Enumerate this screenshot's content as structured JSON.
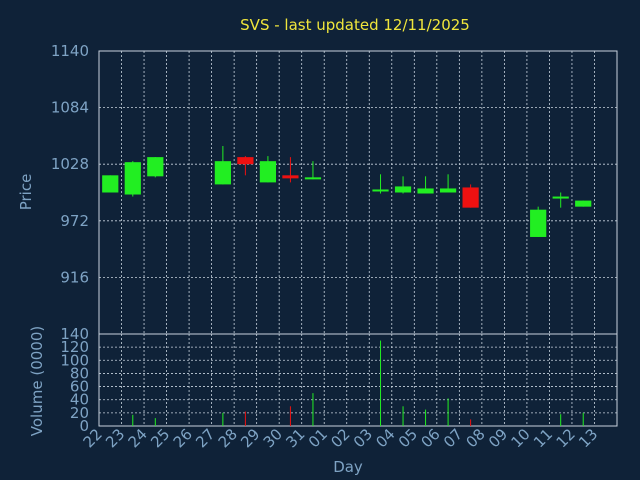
{
  "title": "SVS - last updated 12/11/2025",
  "chart_data": [
    {
      "type": "candlestick",
      "ylabel": "Price",
      "ylim": [
        860,
        1140
      ],
      "yticks": [
        916,
        972,
        1028,
        1084,
        1140
      ],
      "x": [
        "22",
        "23",
        "24",
        "25",
        "26",
        "27",
        "28",
        "29",
        "30",
        "31",
        "01",
        "02",
        "03",
        "04",
        "05",
        "06",
        "07",
        "08",
        "09",
        "10",
        "11",
        "12",
        "13"
      ],
      "candles": [
        {
          "day": "22",
          "open": 1000,
          "close": 1017,
          "high": 1017,
          "low": 1000
        },
        {
          "day": "23",
          "open": 998,
          "close": 1030,
          "high": 1031,
          "low": 996
        },
        {
          "day": "24",
          "open": 1016,
          "close": 1035,
          "high": 1035,
          "low": 1015
        },
        {
          "day": "27",
          "open": 1008,
          "close": 1031,
          "high": 1046,
          "low": 1008
        },
        {
          "day": "28",
          "open": 1035,
          "close": 1028,
          "high": 1036,
          "low": 1017
        },
        {
          "day": "29",
          "open": 1010,
          "close": 1031,
          "high": 1036,
          "low": 1010
        },
        {
          "day": "30",
          "open": 1017,
          "close": 1014,
          "high": 1035,
          "low": 1010
        },
        {
          "day": "31",
          "open": 1013,
          "close": 1015,
          "high": 1031,
          "low": 1013
        },
        {
          "day": "03",
          "open": 1001,
          "close": 1003,
          "high": 1018,
          "low": 999
        },
        {
          "day": "04",
          "open": 1000,
          "close": 1006,
          "high": 1016,
          "low": 999
        },
        {
          "day": "05",
          "open": 999,
          "close": 1004,
          "high": 1016,
          "low": 999
        },
        {
          "day": "06",
          "open": 1000,
          "close": 1004,
          "high": 1018,
          "low": 1000
        },
        {
          "day": "07",
          "open": 1005,
          "close": 985,
          "high": 1008,
          "low": 985
        },
        {
          "day": "10",
          "open": 956,
          "close": 983,
          "high": 986,
          "low": 956
        },
        {
          "day": "11",
          "open": 994,
          "close": 996,
          "high": 1000,
          "low": 985
        },
        {
          "day": "12",
          "open": 986,
          "close": 992,
          "high": 992,
          "low": 986
        }
      ]
    },
    {
      "type": "bar",
      "ylabel": "Volume (0000)",
      "ylim": [
        0,
        140
      ],
      "yticks": [
        0,
        20,
        40,
        60,
        80,
        100,
        120,
        140
      ],
      "x": [
        "22",
        "23",
        "24",
        "25",
        "26",
        "27",
        "28",
        "29",
        "30",
        "31",
        "01",
        "02",
        "03",
        "04",
        "05",
        "06",
        "07",
        "08",
        "09",
        "10",
        "11",
        "12",
        "13"
      ],
      "xlabel": "Day",
      "volumes": [
        {
          "day": "22",
          "value": 0,
          "up": true
        },
        {
          "day": "23",
          "value": 17,
          "up": true
        },
        {
          "day": "24",
          "value": 12,
          "up": true
        },
        {
          "day": "27",
          "value": 20,
          "up": true
        },
        {
          "day": "28",
          "value": 22,
          "up": false
        },
        {
          "day": "29",
          "value": 0,
          "up": true
        },
        {
          "day": "30",
          "value": 30,
          "up": false
        },
        {
          "day": "31",
          "value": 50,
          "up": true
        },
        {
          "day": "03",
          "value": 130,
          "up": true
        },
        {
          "day": "04",
          "value": 30,
          "up": true
        },
        {
          "day": "05",
          "value": 25,
          "up": true
        },
        {
          "day": "06",
          "value": 42,
          "up": true
        },
        {
          "day": "07",
          "value": 10,
          "up": false
        },
        {
          "day": "10",
          "value": 0,
          "up": true
        },
        {
          "day": "11",
          "value": 18,
          "up": true
        },
        {
          "day": "12",
          "value": 20,
          "up": true
        }
      ]
    }
  ],
  "colors": {
    "up": "#22ee22",
    "down": "#ee1111",
    "background": "#0f2238",
    "text": "#7ea3c4",
    "title": "#f0e63c"
  }
}
